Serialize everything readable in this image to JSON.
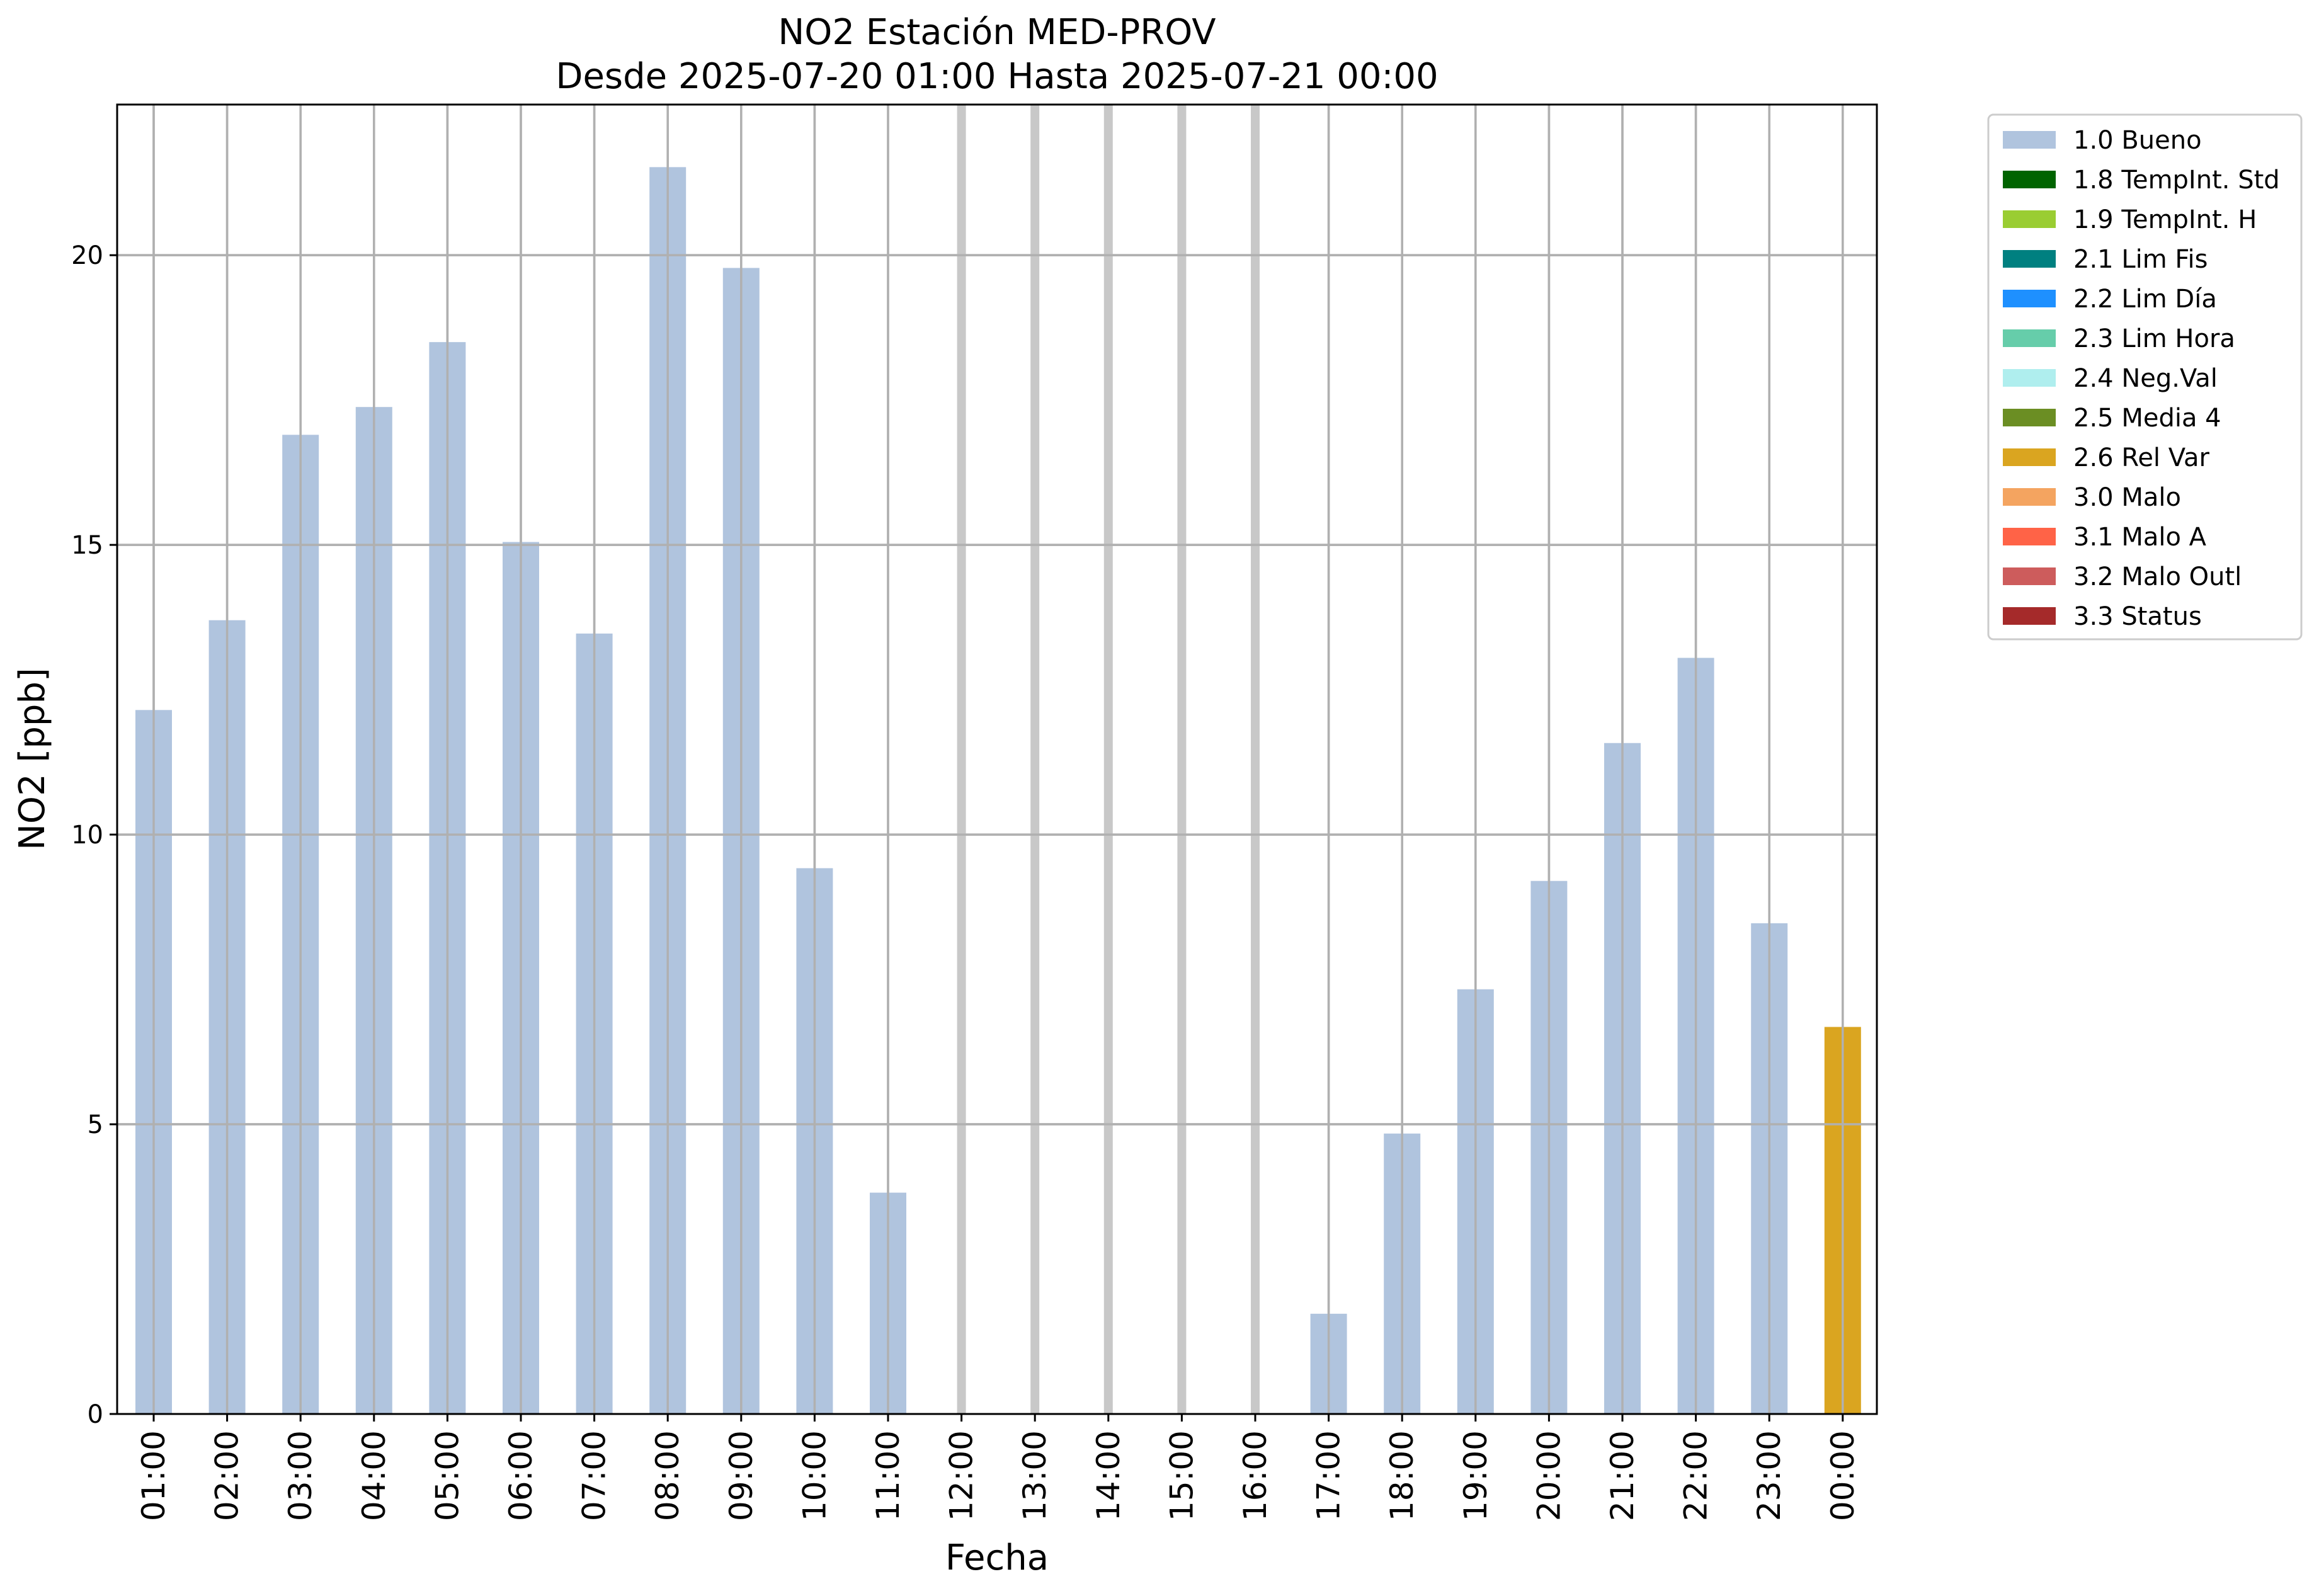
{
  "chart_data": {
    "type": "bar",
    "title": "NO2 Estación MED-PROV",
    "subtitle": "Desde 2025-07-20 01:00 Hasta 2025-07-21 00:00",
    "xlabel": "Fecha",
    "ylabel": "NO2 [ppb]",
    "ylim": [
      0,
      22.6
    ],
    "yticks": [
      0,
      5,
      10,
      15,
      20
    ],
    "grid": true,
    "legend_position": "outside-top-right",
    "categories": [
      "01:00",
      "02:00",
      "03:00",
      "04:00",
      "05:00",
      "06:00",
      "07:00",
      "08:00",
      "09:00",
      "10:00",
      "11:00",
      "12:00",
      "13:00",
      "14:00",
      "15:00",
      "16:00",
      "17:00",
      "18:00",
      "19:00",
      "20:00",
      "21:00",
      "22:00",
      "23:00",
      "00:00"
    ],
    "values": [
      12.15,
      13.7,
      16.9,
      17.38,
      18.5,
      15.05,
      13.47,
      21.52,
      19.78,
      9.42,
      3.82,
      null,
      null,
      null,
      null,
      null,
      1.73,
      4.84,
      7.33,
      9.2,
      11.58,
      13.05,
      8.47,
      6.68
    ],
    "flags": [
      "1.0 Bueno",
      "1.0 Bueno",
      "1.0 Bueno",
      "1.0 Bueno",
      "1.0 Bueno",
      "1.0 Bueno",
      "1.0 Bueno",
      "1.0 Bueno",
      "1.0 Bueno",
      "1.0 Bueno",
      "1.0 Bueno",
      null,
      null,
      null,
      null,
      null,
      "1.0 Bueno",
      "1.0 Bueno",
      "1.0 Bueno",
      "1.0 Bueno",
      "1.0 Bueno",
      "1.0 Bueno",
      "1.0 Bueno",
      "2.6 Rel Var"
    ],
    "legend": [
      {
        "label": "1.0 Bueno",
        "color": "#b0c4de"
      },
      {
        "label": "1.8 TempInt. Std",
        "color": "#006400"
      },
      {
        "label": "1.9 TempInt. H",
        "color": "#9acd32"
      },
      {
        "label": "2.1 Lim Fis",
        "color": "#008080"
      },
      {
        "label": "2.2 Lim Día",
        "color": "#1e90ff"
      },
      {
        "label": "2.3 Lim Hora",
        "color": "#66cdaa"
      },
      {
        "label": "2.4 Neg.Val",
        "color": "#afeeee"
      },
      {
        "label": "2.5 Media 4",
        "color": "#6b8e23"
      },
      {
        "label": "2.6 Rel Var",
        "color": "#daa520"
      },
      {
        "label": "3.0 Malo",
        "color": "#f4a460"
      },
      {
        "label": "3.1 Malo A",
        "color": "#ff6347"
      },
      {
        "label": "3.2 Malo Outl",
        "color": "#cd5c5c"
      },
      {
        "label": "3.3 Status",
        "color": "#a52a2a"
      }
    ]
  }
}
